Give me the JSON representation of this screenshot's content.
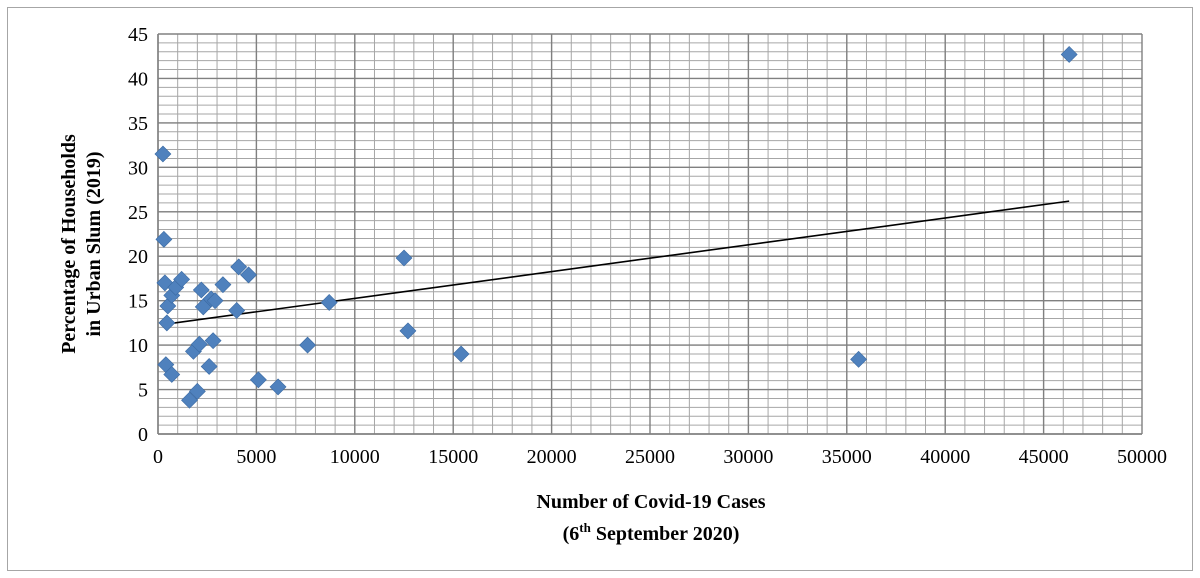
{
  "chart_data": {
    "type": "scatter",
    "xlabel_line1": "Number of Covid-19 Cases",
    "xlabel_line2_pre": "(6",
    "xlabel_line2_sup": "th",
    "xlabel_line2_post": " September 2020)",
    "ylabel_line1": "Percentage of Households",
    "ylabel_line2": "in Urban Slum (2019)",
    "xlim": [
      0,
      50000
    ],
    "ylim": [
      0,
      45
    ],
    "x_major_ticks": [
      0,
      5000,
      10000,
      15000,
      20000,
      25000,
      30000,
      35000,
      40000,
      45000,
      50000
    ],
    "y_major_ticks": [
      0,
      5,
      10,
      15,
      20,
      25,
      30,
      35,
      40,
      45
    ],
    "x_minor_step": 1000,
    "y_minor_step": 1,
    "grid": true,
    "marker": "diamond",
    "marker_color": "#4f81bd",
    "trendline": {
      "type": "linear",
      "x": [
        200,
        46300
      ],
      "y": [
        12.3,
        26.2
      ],
      "color": "#000000"
    },
    "points": [
      {
        "x": 250,
        "y": 31.5
      },
      {
        "x": 300,
        "y": 21.9
      },
      {
        "x": 350,
        "y": 17.0
      },
      {
        "x": 500,
        "y": 14.4
      },
      {
        "x": 450,
        "y": 12.5
      },
      {
        "x": 400,
        "y": 7.8
      },
      {
        "x": 700,
        "y": 6.7
      },
      {
        "x": 700,
        "y": 15.6
      },
      {
        "x": 900,
        "y": 16.5
      },
      {
        "x": 1200,
        "y": 17.4
      },
      {
        "x": 1600,
        "y": 3.8
      },
      {
        "x": 2000,
        "y": 4.8
      },
      {
        "x": 1800,
        "y": 9.3
      },
      {
        "x": 2100,
        "y": 10.1
      },
      {
        "x": 2200,
        "y": 16.2
      },
      {
        "x": 2300,
        "y": 14.3
      },
      {
        "x": 2600,
        "y": 7.6
      },
      {
        "x": 2700,
        "y": 15.2
      },
      {
        "x": 2800,
        "y": 10.5
      },
      {
        "x": 2900,
        "y": 15.0
      },
      {
        "x": 3300,
        "y": 16.8
      },
      {
        "x": 4000,
        "y": 13.9
      },
      {
        "x": 4100,
        "y": 18.8
      },
      {
        "x": 4600,
        "y": 17.9
      },
      {
        "x": 5100,
        "y": 6.1
      },
      {
        "x": 6100,
        "y": 5.3
      },
      {
        "x": 7600,
        "y": 10.0
      },
      {
        "x": 8700,
        "y": 14.8
      },
      {
        "x": 12500,
        "y": 19.8
      },
      {
        "x": 12700,
        "y": 11.6
      },
      {
        "x": 15400,
        "y": 9.0
      },
      {
        "x": 35600,
        "y": 8.4
      },
      {
        "x": 46300,
        "y": 42.7
      }
    ]
  }
}
